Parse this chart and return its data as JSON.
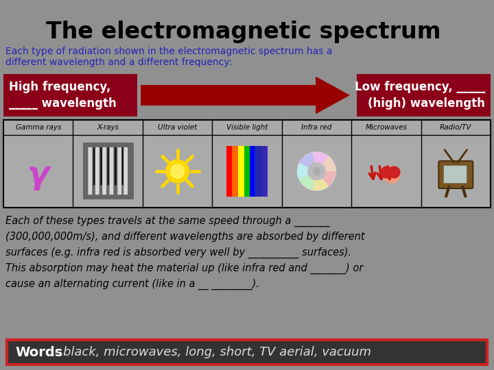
{
  "title": "The electromagnetic spectrum",
  "subtitle": "Each type of radiation shown in the electromagnetic spectrum has a\ndifferent wavelength and a different frequency:",
  "bg_color": "#909090",
  "title_color": "#000000",
  "subtitle_color": "#2222bb",
  "left_box_color": "#8b0018",
  "right_box_color": "#8b0018",
  "left_box_text": "High frequency,\n_____ wavelength",
  "right_box_text": "Low frequency, _____\n(high) wavelength",
  "arrow_color": "#990000",
  "spectrum_labels": [
    "Gamma rays",
    "X-rays",
    "Ultra violet",
    "Visible light",
    "Infra red",
    "Microwaves",
    "Radio/TV"
  ],
  "spectrum_cell_bg": "#aaaaaa",
  "spectrum_border_color": "#000000",
  "body_text_color": "#000000",
  "body_text_line1": "Each of these types travels at the same speed through a _______",
  "body_text_line2": "(300,000,000m/s), and different wavelengths are absorbed by different",
  "body_text_line3": "surfaces (e.g. infra red is absorbed very well by __________ surfaces).",
  "body_text_line4": "This absorption may heat the material up (like infra red and _______) or",
  "body_text_line5": "cause an alternating current (like in a __ ________).",
  "words_box_bg": "#333333",
  "words_box_border": "#cc2222",
  "words_bold": "Words",
  "words_rest": " - black, microwaves, long, short, TV aerial, vacuum",
  "gamma_symbol_color": "#cc44cc"
}
